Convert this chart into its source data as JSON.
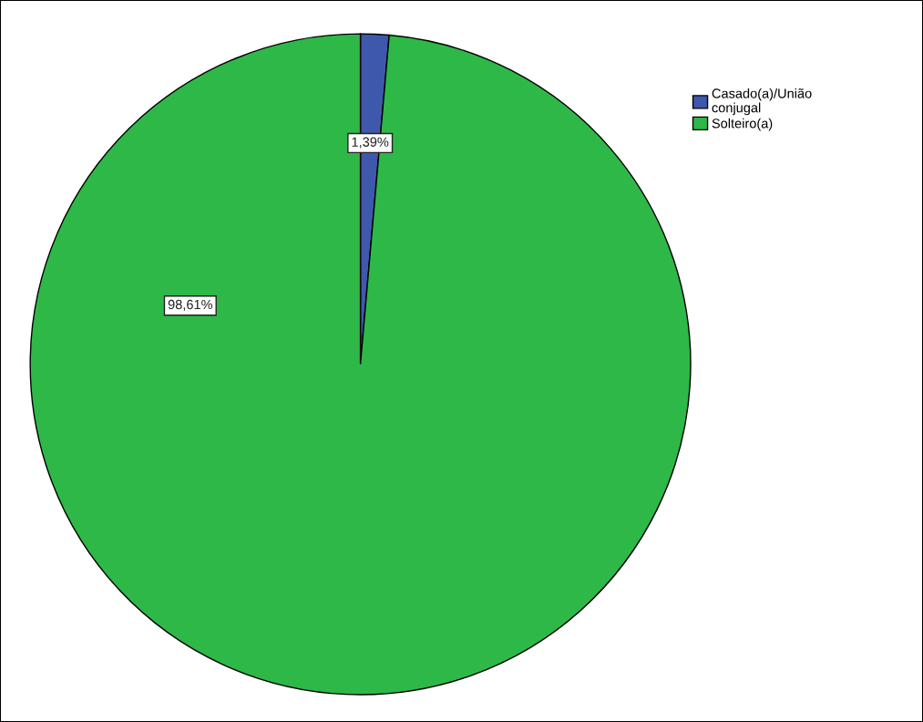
{
  "chart_data": {
    "type": "pie",
    "categories": [
      "Casado(a)/União conjugal",
      "Solteiro(a)"
    ],
    "values": [
      1.39,
      98.61
    ],
    "colors": [
      "#3e58ac",
      "#2eb848"
    ],
    "value_labels": [
      "1,39%",
      "98,61%"
    ],
    "legend": "top right"
  }
}
